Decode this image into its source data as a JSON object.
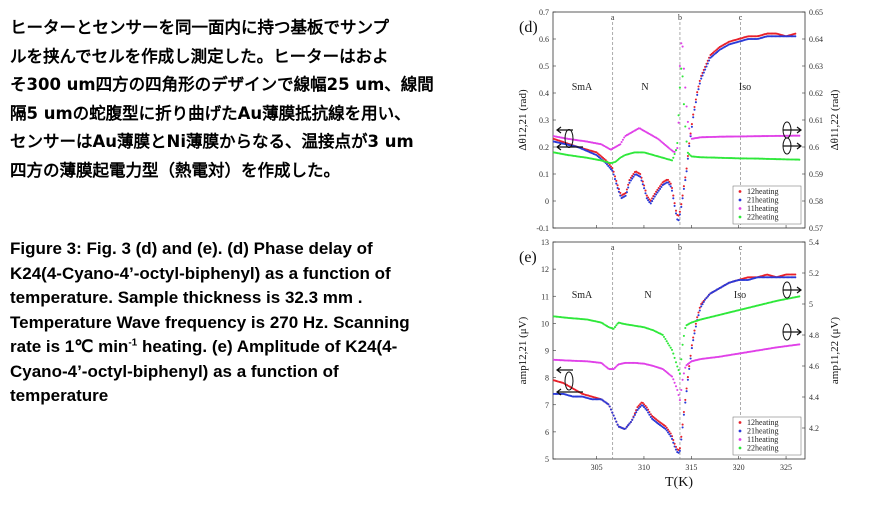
{
  "japanese_text": [
    "ヒーターとセンサーを同一面内に持つ基板でサンプ",
    "ルを挟んでセルを作成し測定した。ヒーターはおよ",
    "そ300 um四方の四角形のデザインで線幅25 um、線間",
    "隔5 umの蛇腹型に折り曲げたAu薄膜抵抗線を用い、",
    "センサーはAu薄膜とNi薄膜からなる、温接点が3 um",
    "四方の薄膜起電力型（熱電対）を作成した。"
  ],
  "caption": {
    "line1": "Figure 3:  Fig. 3 (d) and (e). (d) Phase delay of",
    "line2": "K24(4-Cyano-4’-octyl-biphenyl) as a function of",
    "line3": "temperature. Sample thickness is 32.3 mm .",
    "line4": "Temperature Wave frequency is 270 Hz. Scanning",
    "line5_a": "rate is 1℃ min",
    "line5_sup": "-1",
    "line5_b": " heating. (e) Amplitude of K24(4-",
    "line6": "Cyano-4’-octyl-biphenyl) as a function of",
    "line7": "temperature"
  },
  "chart_data": [
    {
      "type": "line",
      "panel": "(d)",
      "x_range": [
        300.4,
        327.0
      ],
      "xticks": [
        305,
        310,
        315,
        320,
        325
      ],
      "ylabel_left": "Δθ12,21 (rad)",
      "ylabel_right": "Δθ11,22 (rad)",
      "ylim_left": [
        -0.1,
        0.7
      ],
      "ylim_right": [
        0.57,
        0.65
      ],
      "yticks_left": [
        "-0.1",
        "0",
        "0.1",
        "0.2",
        "0.3",
        "0.4",
        "0.5",
        "0.6",
        "0.7"
      ],
      "yticks_right": [
        "0.57",
        "0.58",
        "0.59",
        "0.6",
        "0.61",
        "0.62",
        "0.63",
        "0.64",
        "0.65"
      ],
      "vlines": [
        {
          "x": 306.7,
          "label": "a"
        },
        {
          "x": 313.8,
          "label": "b"
        },
        {
          "x": 320.2,
          "label": "c"
        }
      ],
      "phase_labels": [
        "SmA",
        "N",
        "Iso"
      ],
      "legend": [
        "12heating",
        "21heating",
        "11heating",
        "22heating"
      ],
      "colors": [
        "#e8202a",
        "#2a3ad8",
        "#e040e8",
        "#2ee83a"
      ],
      "series": [
        {
          "name": "12heating",
          "axis": "left",
          "x": [
            300.5,
            303,
            305,
            306,
            306.7,
            307.2,
            307.6,
            308.1,
            308.5,
            309.1,
            309.6,
            310,
            310.3,
            310.7,
            311.2,
            312,
            312.5,
            312.9,
            313.2,
            313.4,
            313.6,
            313.8,
            314,
            314.2,
            314.5,
            314.8,
            315.2,
            315.6,
            316,
            316.5,
            317,
            318,
            319,
            320,
            321,
            322,
            323,
            324,
            325,
            326
          ],
          "y": [
            0.23,
            0.2,
            0.18,
            0.15,
            0.12,
            0.06,
            0.02,
            0.03,
            0.08,
            0.11,
            0.1,
            0.06,
            0.02,
            0.0,
            0.03,
            0.07,
            0.08,
            0.06,
            0.0,
            -0.04,
            -0.06,
            -0.04,
            0.0,
            0.05,
            0.12,
            0.22,
            0.32,
            0.4,
            0.46,
            0.5,
            0.54,
            0.57,
            0.59,
            0.6,
            0.61,
            0.61,
            0.62,
            0.62,
            0.61,
            0.62
          ]
        },
        {
          "name": "21heating",
          "axis": "left",
          "x": [
            300.5,
            303,
            305,
            306,
            306.7,
            307.2,
            307.6,
            308.1,
            308.5,
            309.1,
            309.6,
            310,
            310.3,
            310.7,
            311.2,
            312,
            312.5,
            312.9,
            313.2,
            313.4,
            313.6,
            313.8,
            314,
            314.2,
            314.5,
            314.8,
            315.2,
            315.6,
            316,
            316.5,
            317,
            318,
            319,
            320,
            321,
            322,
            323,
            324,
            325,
            326
          ],
          "y": [
            0.22,
            0.2,
            0.17,
            0.14,
            0.11,
            0.05,
            0.01,
            0.02,
            0.07,
            0.1,
            0.09,
            0.05,
            0.01,
            -0.01,
            0.02,
            0.06,
            0.07,
            0.05,
            -0.01,
            -0.05,
            -0.08,
            -0.05,
            -0.01,
            0.04,
            0.11,
            0.21,
            0.31,
            0.39,
            0.45,
            0.49,
            0.53,
            0.56,
            0.58,
            0.59,
            0.6,
            0.6,
            0.61,
            0.61,
            0.61,
            0.61
          ]
        },
        {
          "name": "11heating",
          "axis": "right",
          "x": [
            300.5,
            302,
            304,
            305.5,
            306.5,
            307,
            307.5,
            308,
            308.5,
            309.5,
            310.5,
            311.5,
            312.5,
            313.2,
            313.6,
            313.8,
            314,
            314.2,
            314.6,
            315,
            316,
            318,
            320,
            322,
            324,
            326.5
          ],
          "y": [
            0.604,
            0.603,
            0.602,
            0.601,
            0.599,
            0.6,
            0.601,
            0.604,
            0.605,
            0.607,
            0.605,
            0.603,
            0.6,
            0.598,
            0.6,
            0.63,
            0.642,
            0.63,
            0.61,
            0.603,
            0.6036,
            0.6038,
            0.6039,
            0.604,
            0.6041,
            0.6042
          ]
        },
        {
          "name": "22heating",
          "axis": "right",
          "x": [
            300.5,
            302,
            304,
            305.5,
            306.5,
            307,
            307.5,
            308,
            309,
            310,
            311,
            312,
            313,
            313.5,
            313.8,
            314,
            314.3,
            314.6,
            315,
            316,
            318,
            320,
            322,
            324,
            326.5
          ],
          "y": [
            0.598,
            0.597,
            0.596,
            0.595,
            0.594,
            0.5945,
            0.596,
            0.597,
            0.598,
            0.598,
            0.597,
            0.596,
            0.595,
            0.6,
            0.622,
            0.632,
            0.61,
            0.598,
            0.5965,
            0.5962,
            0.596,
            0.5958,
            0.5957,
            0.5955,
            0.5953
          ]
        }
      ]
    },
    {
      "type": "line",
      "panel": "(e)",
      "x_range": [
        300.4,
        327.0
      ],
      "xticks": [
        305,
        310,
        315,
        320,
        325
      ],
      "xlabel": "T(K)",
      "ylabel_left": "amp12,21 (μV)",
      "ylabel_right": "amp11,22 (μV)",
      "ylim_left": [
        5,
        13
      ],
      "ylim_right": [
        4.0,
        5.4
      ],
      "yticks_left": [
        "5",
        "6",
        "7",
        "8",
        "9",
        "10",
        "11",
        "12",
        "13"
      ],
      "yticks_right": [
        "4.2",
        "4.4",
        "4.6",
        "4.8",
        "5",
        "5.2",
        "5.4"
      ],
      "vlines": [
        {
          "x": 306.7,
          "label": "a"
        },
        {
          "x": 313.8,
          "label": "b"
        },
        {
          "x": 320.2,
          "label": "c"
        }
      ],
      "phase_labels": [
        "SmA",
        "N",
        "Iso"
      ],
      "legend": [
        "12heating",
        "21heating",
        "11heating",
        "22heating"
      ],
      "colors": [
        "#e8202a",
        "#2a3ad8",
        "#e040e8",
        "#2ee83a"
      ],
      "series": [
        {
          "name": "12heating",
          "axis": "left",
          "x": [
            300.5,
            301.5,
            302.5,
            303.5,
            304.5,
            305.5,
            306.3,
            306.8,
            307.3,
            308,
            308.7,
            309.3,
            309.8,
            310.3,
            310.8,
            311.5,
            312.3,
            312.9,
            313.3,
            313.6,
            313.8,
            314,
            314.3,
            314.7,
            315.1,
            315.6,
            316,
            316.5,
            317,
            318,
            319,
            320,
            321,
            322,
            323,
            324,
            325,
            326
          ],
          "y": [
            7.9,
            7.8,
            7.6,
            7.4,
            7.3,
            7.2,
            7.0,
            6.6,
            6.2,
            6.1,
            6.4,
            6.9,
            7.1,
            6.9,
            6.6,
            6.4,
            6.2,
            5.9,
            5.5,
            5.3,
            5.4,
            6.0,
            7.0,
            8.2,
            9.3,
            10.2,
            10.7,
            10.9,
            11.1,
            11.3,
            11.5,
            11.6,
            11.7,
            11.7,
            11.8,
            11.7,
            11.8,
            11.8
          ]
        },
        {
          "name": "21heating",
          "axis": "left",
          "x": [
            300.5,
            301.5,
            302.5,
            303.5,
            304.5,
            305.5,
            306.3,
            306.8,
            307.3,
            308,
            308.7,
            309.3,
            309.8,
            310.3,
            310.8,
            311.5,
            312.3,
            312.9,
            313.3,
            313.6,
            313.8,
            314,
            314.3,
            314.7,
            315.1,
            315.6,
            316,
            316.5,
            317,
            318,
            319,
            320,
            321,
            322,
            323,
            324,
            325,
            326
          ],
          "y": [
            7.4,
            7.4,
            7.3,
            7.3,
            7.2,
            7.2,
            7.0,
            6.6,
            6.2,
            6.1,
            6.4,
            6.8,
            7.0,
            6.8,
            6.5,
            6.3,
            6.1,
            5.8,
            5.4,
            5.2,
            5.3,
            5.9,
            6.9,
            8.1,
            9.2,
            10.1,
            10.6,
            10.9,
            11.1,
            11.3,
            11.5,
            11.6,
            11.6,
            11.7,
            11.7,
            11.7,
            11.7,
            11.7
          ]
        },
        {
          "name": "11heating",
          "axis": "right",
          "x": [
            300.5,
            302,
            304,
            305.5,
            306.3,
            306.8,
            307.3,
            308,
            309,
            310,
            311,
            312,
            313,
            313.5,
            313.8,
            314.1,
            314.4,
            315,
            316,
            318,
            320,
            322,
            324,
            326.5
          ],
          "y": [
            4.64,
            4.635,
            4.63,
            4.62,
            4.58,
            4.58,
            4.61,
            4.62,
            4.62,
            4.615,
            4.6,
            4.58,
            4.53,
            4.45,
            4.38,
            4.52,
            4.6,
            4.63,
            4.645,
            4.66,
            4.68,
            4.7,
            4.72,
            4.74
          ]
        },
        {
          "name": "22heating",
          "axis": "right",
          "x": [
            300.5,
            302,
            304,
            305.5,
            306.3,
            306.8,
            307.3,
            308,
            309,
            310,
            311,
            312,
            313,
            313.5,
            313.8,
            314.1,
            314.4,
            315,
            316,
            318,
            320,
            322,
            324,
            326.5
          ],
          "y": [
            4.92,
            4.91,
            4.9,
            4.88,
            4.85,
            4.84,
            4.88,
            4.87,
            4.86,
            4.85,
            4.83,
            4.8,
            4.7,
            4.6,
            4.55,
            4.75,
            4.86,
            4.88,
            4.9,
            4.93,
            4.96,
            4.99,
            5.02,
            5.05
          ]
        }
      ]
    }
  ]
}
